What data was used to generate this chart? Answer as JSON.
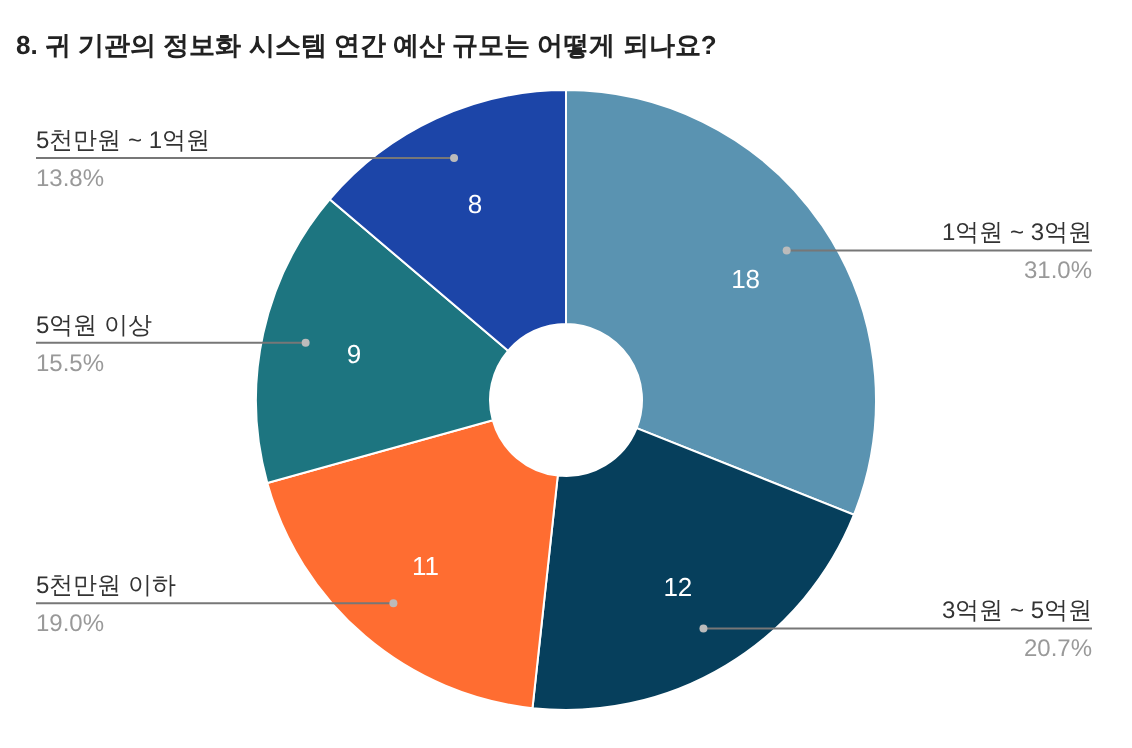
{
  "chart_data": {
    "type": "donut",
    "title": "8. 귀 기관의 정보화 시스템 연간 예산 규모는 어떻게 되나요?",
    "categories": [
      "1억원 ~ 3억원",
      "3억원 ~ 5억원",
      "5천만원 이하",
      "5억원 이상",
      "5천만원 ~ 1억원"
    ],
    "values": [
      18,
      12,
      11,
      9,
      8
    ],
    "colors": [
      "#5a93b1",
      "#063f5c",
      "#ff6d31",
      "#1d7580",
      "#1c45a8"
    ],
    "data_labels": true,
    "annotations": [
      {
        "text": "31.0%",
        "x": "1억원 ~ 3억원"
      },
      {
        "text": "20.7%",
        "x": "3억원 ~ 5억원"
      },
      {
        "text": "19.0%",
        "x": "5천만원 이하"
      },
      {
        "text": "15.5%",
        "x": "5억원 이상"
      },
      {
        "text": "13.8%",
        "x": "5천만원 ~ 1억원"
      }
    ]
  }
}
